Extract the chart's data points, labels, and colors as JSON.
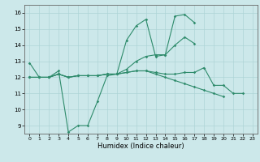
{
  "xlabel": "Humidex (Indice chaleur)",
  "x": [
    0,
    1,
    2,
    3,
    4,
    5,
    6,
    7,
    8,
    9,
    10,
    11,
    12,
    13,
    14,
    15,
    16,
    17,
    18,
    19,
    20,
    21,
    22,
    23
  ],
  "line1": [
    12.9,
    12.0,
    12.0,
    12.4,
    8.6,
    9.0,
    9.0,
    10.5,
    12.1,
    12.2,
    14.3,
    15.2,
    15.6,
    13.3,
    13.4,
    15.8,
    15.9,
    15.4,
    null,
    null,
    null,
    null,
    null,
    null
  ],
  "line2": [
    12.0,
    12.0,
    12.0,
    12.2,
    12.0,
    12.1,
    12.1,
    12.1,
    12.2,
    12.2,
    12.5,
    13.0,
    13.3,
    13.4,
    13.4,
    14.0,
    14.5,
    14.1,
    null,
    null,
    null,
    null,
    null,
    null
  ],
  "line3": [
    12.0,
    12.0,
    12.0,
    12.2,
    12.0,
    12.1,
    12.1,
    12.1,
    12.2,
    12.2,
    12.3,
    12.4,
    12.4,
    12.3,
    12.2,
    12.2,
    12.3,
    12.3,
    12.6,
    11.5,
    11.5,
    11.0,
    11.0,
    null
  ],
  "line4": [
    12.0,
    12.0,
    12.0,
    12.2,
    12.0,
    12.1,
    12.1,
    12.1,
    12.2,
    12.2,
    12.3,
    12.4,
    12.4,
    12.2,
    12.0,
    11.8,
    11.6,
    11.4,
    11.2,
    11.0,
    10.8,
    null,
    null,
    null
  ],
  "line_color": "#2e8b6b",
  "bg_color": "#cce8ea",
  "grid_color": "#aed4d6",
  "ylim": [
    8.5,
    16.5
  ],
  "yticks": [
    9,
    10,
    11,
    12,
    13,
    14,
    15,
    16
  ],
  "xlim": [
    -0.5,
    23.5
  ],
  "xticks": [
    0,
    1,
    2,
    3,
    4,
    5,
    6,
    7,
    8,
    9,
    10,
    11,
    12,
    13,
    14,
    15,
    16,
    17,
    18,
    19,
    20,
    21,
    22,
    23
  ]
}
